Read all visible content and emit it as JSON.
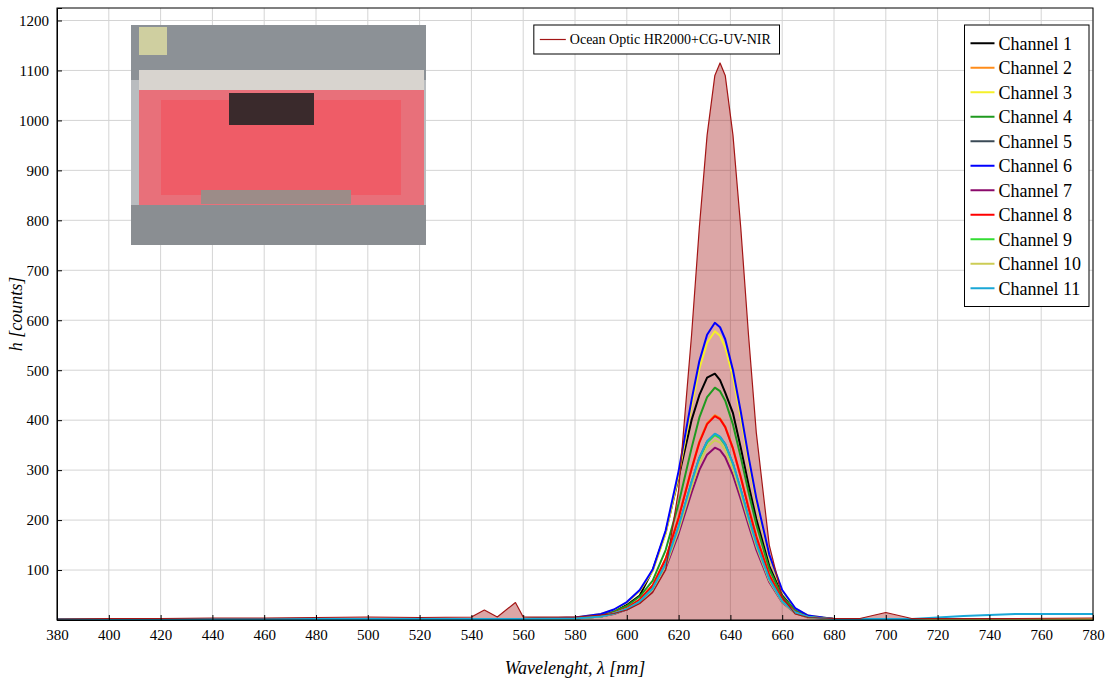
{
  "chart_data": {
    "type": "line",
    "x_label": "Wavelenght, λ [nm]",
    "y_label": "h [counts]",
    "x": [
      380,
      400,
      420,
      440,
      460,
      480,
      500,
      520,
      540,
      545,
      550,
      557,
      560,
      580,
      590,
      595,
      600,
      605,
      610,
      615,
      620,
      625,
      628,
      631,
      634,
      636,
      638,
      641,
      644,
      647,
      650,
      655,
      660,
      665,
      670,
      680,
      690,
      700,
      710,
      730,
      750,
      780
    ],
    "xlim": [
      380,
      780
    ],
    "xticks": [
      380,
      400,
      420,
      440,
      460,
      480,
      500,
      520,
      540,
      560,
      580,
      600,
      620,
      640,
      660,
      680,
      700,
      720,
      740,
      760,
      780
    ],
    "ylim": [
      0,
      1225
    ],
    "yticks": [
      100,
      200,
      300,
      400,
      500,
      600,
      700,
      800,
      900,
      1000,
      1100,
      1200
    ],
    "grid": true,
    "legend": "upper right",
    "series": [
      {
        "name": "Ocean Optic HR2000+CG-UV-NIR",
        "color": "#a31515",
        "type": "area",
        "values": [
          2,
          3,
          3,
          4,
          4,
          5,
          6,
          5,
          6,
          20,
          6,
          35,
          6,
          6,
          10,
          13,
          20,
          33,
          55,
          100,
          260,
          570,
          785,
          970,
          1090,
          1115,
          1090,
          970,
          785,
          570,
          375,
          150,
          46,
          12,
          5,
          3,
          3,
          15,
          3,
          3,
          3,
          4
        ]
      },
      {
        "name": "Channel 1",
        "color": "#000000",
        "type": "line",
        "values": [
          2,
          2,
          2,
          2,
          2,
          2,
          2,
          2,
          2,
          2,
          2,
          2,
          2,
          4,
          10,
          17,
          30,
          49,
          100,
          175,
          285,
          400,
          450,
          485,
          493,
          480,
          455,
          414,
          345,
          271,
          202,
          108,
          49,
          20,
          7,
          2,
          2,
          2,
          2,
          2,
          2,
          2
        ]
      },
      {
        "name": "Channel 2",
        "color": "#ff8c1a",
        "type": "line",
        "values": [
          2,
          2,
          2,
          2,
          2,
          2,
          2,
          2,
          2,
          2,
          2,
          2,
          2,
          3,
          8,
          14,
          25,
          41,
          70,
          123,
          205,
          303,
          357,
          394,
          410,
          404,
          387,
          344,
          287,
          226,
          168,
          90,
          41,
          16,
          6,
          2,
          2,
          2,
          2,
          2,
          2,
          2
        ]
      },
      {
        "name": "Channel 3",
        "color": "#f5f02a",
        "type": "line",
        "values": [
          2,
          2,
          2,
          2,
          2,
          2,
          2,
          2,
          2,
          2,
          2,
          2,
          2,
          5,
          12,
          20,
          35,
          58,
          98,
          173,
          289,
          428,
          503,
          555,
          578,
          569,
          546,
          486,
          405,
          318,
          237,
          127,
          58,
          23,
          9,
          2,
          2,
          2,
          2,
          2,
          2,
          2
        ]
      },
      {
        "name": "Channel 4",
        "color": "#1f9a1f",
        "type": "line",
        "values": [
          2,
          2,
          2,
          2,
          2,
          2,
          2,
          2,
          2,
          2,
          2,
          2,
          2,
          4,
          9,
          16,
          28,
          47,
          79,
          140,
          233,
          344,
          405,
          446,
          465,
          458,
          439,
          391,
          326,
          256,
          191,
          102,
          47,
          19,
          7,
          2,
          2,
          2,
          2,
          2,
          2,
          2
        ]
      },
      {
        "name": "Channel 5",
        "color": "#3a4a56",
        "type": "line",
        "values": [
          2,
          2,
          2,
          2,
          2,
          2,
          2,
          2,
          2,
          2,
          2,
          2,
          2,
          3,
          7,
          13,
          22,
          37,
          63,
          112,
          186,
          275,
          324,
          357,
          372,
          366,
          352,
          312,
          260,
          205,
          153,
          82,
          37,
          15,
          6,
          1,
          2,
          2,
          2,
          2,
          2,
          2
        ]
      },
      {
        "name": "Channel 6",
        "color": "#0000ff",
        "type": "line",
        "values": [
          2,
          2,
          2,
          2,
          2,
          2,
          2,
          2,
          2,
          2,
          2,
          2,
          2,
          5,
          12,
          21,
          36,
          60,
          101,
          179,
          298,
          440,
          518,
          571,
          595,
          586,
          562,
          500,
          417,
          327,
          244,
          131,
          60,
          24,
          9,
          2,
          2,
          2,
          2,
          2,
          2,
          2
        ]
      },
      {
        "name": "Channel 7",
        "color": "#8b0a6b",
        "type": "line",
        "values": [
          2,
          2,
          2,
          2,
          2,
          2,
          2,
          2,
          2,
          2,
          2,
          2,
          2,
          3,
          7,
          12,
          21,
          35,
          59,
          104,
          173,
          255,
          300,
          331,
          345,
          340,
          326,
          290,
          242,
          190,
          141,
          76,
          35,
          14,
          5,
          1,
          2,
          2,
          2,
          2,
          2,
          2
        ]
      },
      {
        "name": "Channel 8",
        "color": "#ff0000",
        "type": "line",
        "values": [
          2,
          2,
          2,
          2,
          2,
          2,
          2,
          2,
          2,
          2,
          2,
          2,
          2,
          3,
          8,
          14,
          24,
          41,
          69,
          122,
          204,
          302,
          355,
          392,
          408,
          402,
          386,
          343,
          286,
          224,
          167,
          90,
          41,
          16,
          6,
          2,
          2,
          2,
          2,
          2,
          2,
          2
        ]
      },
      {
        "name": "Channel 9",
        "color": "#33dd33",
        "type": "line",
        "values": [
          2,
          2,
          2,
          2,
          2,
          2,
          2,
          2,
          2,
          2,
          2,
          2,
          2,
          3,
          7,
          13,
          22,
          37,
          63,
          111,
          185,
          274,
          322,
          355,
          370,
          364,
          350,
          311,
          259,
          204,
          152,
          81,
          37,
          15,
          6,
          1,
          2,
          2,
          2,
          2,
          2,
          2
        ]
      },
      {
        "name": "Channel 10",
        "color": "#cccc55",
        "type": "line",
        "values": [
          2,
          2,
          2,
          2,
          2,
          2,
          2,
          2,
          2,
          2,
          2,
          2,
          2,
          3,
          7,
          13,
          22,
          36,
          61,
          108,
          180,
          266,
          313,
          346,
          360,
          355,
          340,
          302,
          252,
          198,
          148,
          79,
          36,
          14,
          5,
          1,
          2,
          2,
          2,
          2,
          2,
          2
        ]
      },
      {
        "name": "Channel 11",
        "color": "#1aa7d6",
        "type": "line",
        "values": [
          2,
          2,
          2,
          2,
          2,
          2,
          2,
          2,
          2,
          2,
          2,
          2,
          2,
          3,
          7,
          13,
          22,
          37,
          63,
          112,
          187,
          276,
          325,
          358,
          373,
          367,
          352,
          313,
          261,
          205,
          153,
          82,
          37,
          15,
          6,
          2,
          2,
          2,
          2,
          8,
          12,
          12
        ]
      }
    ]
  }
}
